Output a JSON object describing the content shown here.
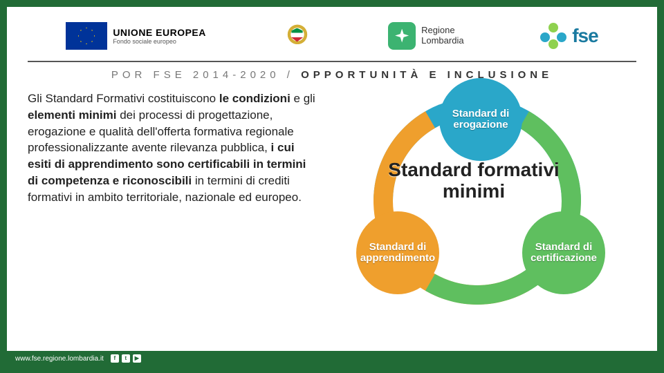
{
  "header": {
    "eu_title": "UNIONE EUROPEA",
    "eu_subtitle": "Fondo sociale europeo",
    "lombardia_line1": "Regione",
    "lombardia_line2": "Lombardia",
    "fse_label": "fse"
  },
  "subheader": {
    "left": "POR FSE 2014-2020",
    "sep": "/",
    "right": "OPPORTUNITÀ E INCLUSIONE"
  },
  "body": {
    "html": "Gli Standard Formativi costituiscono <b>le condizioni</b> e gli <b>elementi minimi</b> dei processi di progettazione, erogazione e qualità dell'offerta formativa regionale professionalizzante avente rilevanza pubblica, <b>i cui esiti di apprendimento sono certificabili in termini di competenza e riconoscibili</b> in termini di crediti formativi in ambito territoriale, nazionale ed europeo."
  },
  "diagram": {
    "center": "Standard formativi minimi",
    "nodes": [
      {
        "label": "Standard di erogazione",
        "color": "#2aa7c9",
        "pos": "top"
      },
      {
        "label": "Standard di apprendimento",
        "color": "#ef9f2d",
        "pos": "left"
      },
      {
        "label": "Standard di certificazione",
        "color": "#5fbf5f",
        "pos": "right"
      }
    ],
    "arc_colors": {
      "top": "#2aa7c9",
      "left": "#ef9f2d",
      "right": "#5fbf5f"
    }
  },
  "footer": {
    "url": "www.fse.regione.lombardia.it",
    "social": [
      "f",
      "t",
      "▶"
    ]
  }
}
